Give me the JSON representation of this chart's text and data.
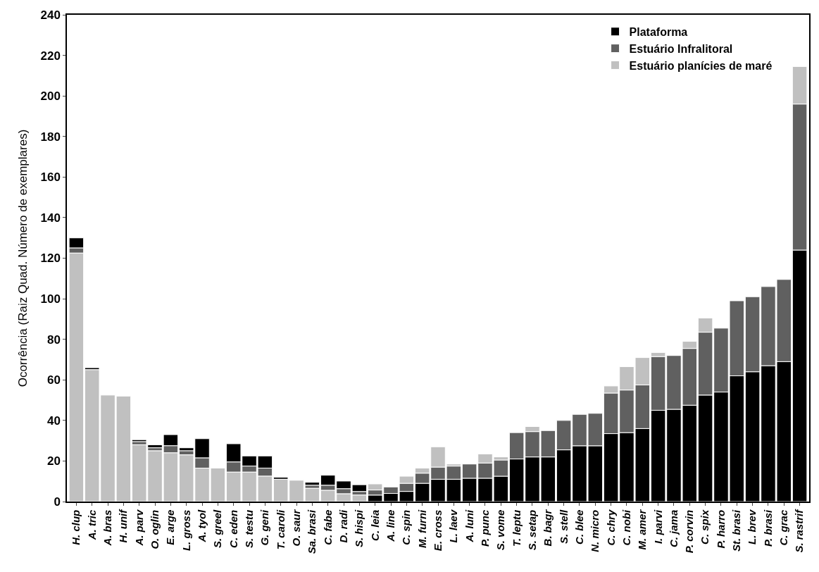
{
  "chart_data": {
    "type": "bar",
    "ylabel": "Ocorrência (Raiz Quad. Número de exemplares)",
    "categories": [
      "H. clup",
      "A. tric",
      "A. bras",
      "H. unif",
      "A. parv",
      "O. oglin",
      "E. arge",
      "L. gross",
      "A. tyol",
      "S. greel",
      "C. eden",
      "S. testu",
      "G. geni",
      "T. caroli",
      "O. saur",
      "Sa. brasi",
      "C. fabe",
      "D. radi",
      "S. hispi",
      "C. leia",
      "A. line",
      "C. spin",
      "M. furni",
      "E. cross",
      "L. laev",
      "A. luni",
      "P. punc",
      "S. vome",
      "T. leptu",
      "S. setap",
      "B. bagr",
      "S. stell",
      "C. blee",
      "N. micro",
      "C. chry",
      "C. nobi",
      "M. amer",
      "I. parvi",
      "C. jama",
      "P. corvin",
      "C. spix",
      "P. harro",
      "St. brasi",
      "L. brev",
      "P. brasi",
      "C. grac",
      "S. rastrif"
    ],
    "series": [
      {
        "name": "Plataforma",
        "color": "#000000",
        "values": [
          5,
          1,
          null,
          null,
          1,
          1.5,
          5.5,
          1.5,
          9.5,
          null,
          9,
          5,
          6,
          1,
          null,
          1.5,
          5,
          3.8,
          3.4,
          3.2,
          4,
          5,
          9,
          11,
          11,
          11.5,
          11.5,
          12.5,
          21,
          22,
          22,
          25.5,
          27.5,
          27.5,
          33.5,
          34,
          36,
          45,
          45.5,
          47.5,
          52.5,
          54,
          62,
          64,
          67,
          69,
          124
        ],
        "base": [
          125,
          65,
          null,
          null,
          29.5,
          26.5,
          27.5,
          25,
          21.5,
          null,
          19.5,
          17.5,
          16.5,
          11,
          null,
          8,
          8,
          6.3,
          4.9,
          0,
          0,
          0,
          0,
          0,
          0,
          0,
          0,
          0,
          0,
          0,
          0,
          0,
          0,
          0,
          0,
          0,
          0,
          0,
          0,
          0,
          0,
          0,
          0,
          0,
          0,
          0,
          0
        ]
      },
      {
        "name": "Estuário Infralitoral",
        "color": "#606060",
        "values": [
          2.5,
          null,
          null,
          null,
          1.5,
          1.5,
          3.5,
          2,
          5,
          null,
          5,
          3,
          4,
          null,
          null,
          1.5,
          2.5,
          2.5,
          1.7,
          2.5,
          3.2,
          4,
          5,
          6,
          6.5,
          7,
          7.5,
          8,
          13,
          12.5,
          13,
          14.5,
          15.5,
          16,
          20,
          21,
          21.5,
          26.5,
          26.5,
          28,
          31,
          31.5,
          37,
          37,
          39,
          40.5,
          72
        ],
        "base": [
          122.5,
          null,
          null,
          null,
          28,
          25,
          24,
          23,
          16.5,
          null,
          14.5,
          14.5,
          12.5,
          null,
          null,
          6.5,
          5.5,
          3.8,
          3.2,
          3.2,
          4,
          5,
          9,
          11,
          11,
          11.5,
          11.5,
          12.5,
          21,
          22,
          22,
          25.5,
          27.5,
          27.5,
          33.5,
          34,
          36,
          45,
          45.5,
          47.5,
          52.5,
          54,
          62,
          64,
          67,
          69,
          124
        ]
      },
      {
        "name": "Estuário planícies de maré",
        "color": "#c0c0c0",
        "values": [
          122.5,
          65,
          52.5,
          52,
          28,
          25,
          24,
          23,
          16.5,
          16.5,
          14.5,
          14.5,
          12.5,
          11,
          10.5,
          6.5,
          5.5,
          3.8,
          3.2,
          3,
          null,
          3.5,
          2.5,
          10,
          1,
          null,
          4.5,
          1.5,
          null,
          2.5,
          null,
          null,
          null,
          null,
          3.5,
          11.5,
          13.5,
          2,
          null,
          3.5,
          7,
          null,
          null,
          null,
          null,
          null,
          18.5
        ],
        "base": [
          0,
          0,
          0,
          0,
          0,
          0,
          0,
          0,
          0,
          0,
          0,
          0,
          0,
          0,
          0,
          0,
          0,
          0,
          0,
          5.7,
          null,
          9,
          14,
          17,
          17.5,
          null,
          19,
          20.5,
          null,
          34.5,
          null,
          null,
          null,
          null,
          53.5,
          55,
          57.5,
          71.5,
          null,
          75.5,
          83.5,
          null,
          null,
          null,
          null,
          null,
          196
        ]
      }
    ],
    "ylim": [
      0,
      240
    ],
    "yticks": [
      0,
      20,
      40,
      60,
      80,
      100,
      120,
      140,
      160,
      180,
      200,
      220,
      240
    ],
    "legend": "top right"
  }
}
